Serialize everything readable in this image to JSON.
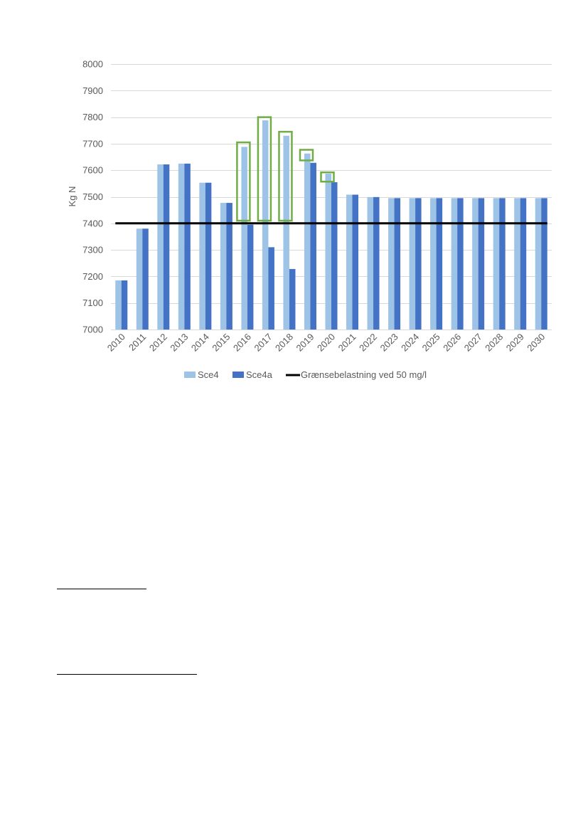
{
  "chart_data": {
    "type": "bar",
    "title": "",
    "xlabel": "",
    "ylabel": "Kg N",
    "ylim": [
      7000,
      8000
    ],
    "yticks": [
      7000,
      7100,
      7200,
      7300,
      7400,
      7500,
      7600,
      7700,
      7800,
      7900,
      8000
    ],
    "grid": true,
    "legend_position": "bottom",
    "categories": [
      "2010",
      "2011",
      "2012",
      "2013",
      "2014",
      "2015",
      "2016",
      "2017",
      "2018",
      "2019",
      "2020",
      "2021",
      "2022",
      "2023",
      "2024",
      "2025",
      "2026",
      "2027",
      "2028",
      "2029",
      "2030"
    ],
    "series": [
      {
        "name": "Sce4",
        "color": "#9dc3e6",
        "values": [
          7185,
          7380,
          7622,
          7625,
          7553,
          7477,
          7688,
          7788,
          7730,
          7663,
          7587,
          7508,
          7499,
          7495,
          7495,
          7495,
          7495,
          7495,
          7495,
          7495,
          7495
        ]
      },
      {
        "name": "Sce4a",
        "color": "#4472c4",
        "values": [
          7185,
          7380,
          7622,
          7625,
          7553,
          7477,
          7395,
          7310,
          7228,
          7628,
          7555,
          7508,
          7499,
          7495,
          7495,
          7495,
          7495,
          7495,
          7495,
          7495,
          7495
        ]
      }
    ],
    "reference_line": {
      "name": "Grænsebelastning ved 50 mg/l",
      "value": 7400,
      "color": "#000000"
    },
    "highlights": {
      "color": "#70ad47",
      "boxes": [
        {
          "category": "2016",
          "from": 7410,
          "to": 7705
        },
        {
          "category": "2017",
          "from": 7410,
          "to": 7800
        },
        {
          "category": "2018",
          "from": 7410,
          "to": 7745
        },
        {
          "category": "2019",
          "from": 7637,
          "to": 7677
        },
        {
          "category": "2020",
          "from": 7557,
          "to": 7592
        }
      ]
    }
  }
}
